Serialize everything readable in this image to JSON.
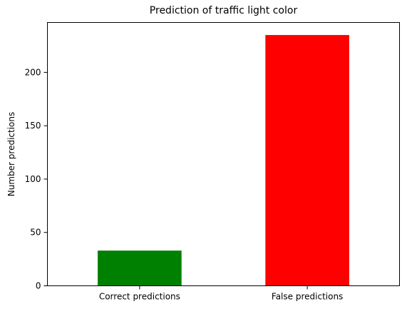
{
  "chart_data": {
    "type": "bar",
    "title": "Prediction of traffic light color",
    "xlabel": "",
    "ylabel": "Number predictions",
    "categories": [
      "Correct predictions",
      "False predictions"
    ],
    "values": [
      33,
      235
    ],
    "colors": [
      "#008000",
      "#ff0000"
    ],
    "ylim": [
      0,
      246.75
    ],
    "yticks": [
      0,
      50,
      100,
      150,
      200
    ],
    "grid": false,
    "legend": "none"
  }
}
